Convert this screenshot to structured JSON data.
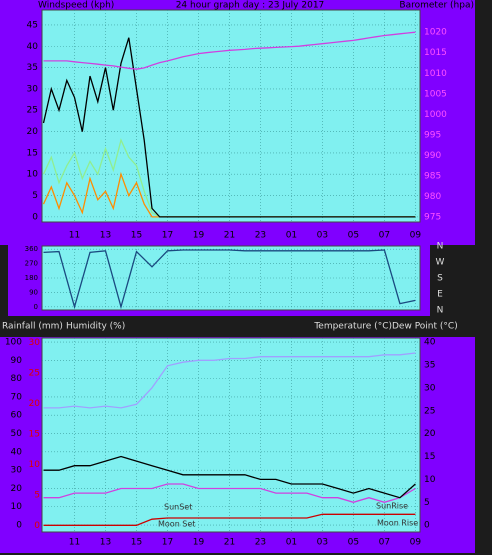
{
  "chart_data": [
    {
      "type": "line",
      "title": "24 hour graph day : 23 July 2017",
      "y_label": "Windspeed (kph)",
      "y2_label": "Barometer (hpa)",
      "x": [
        9,
        9.5,
        10,
        10.5,
        11,
        11.5,
        12,
        12.5,
        13,
        13.5,
        14,
        14.5,
        15,
        15.5,
        16,
        16.5,
        17,
        17.5,
        18,
        18.5,
        19,
        19.5,
        20,
        20.5,
        21,
        21.5,
        22,
        22.5,
        23,
        23.5,
        24,
        24.5,
        25,
        25.5,
        26,
        26.5,
        27,
        27.5,
        28,
        28.5,
        29,
        29.5,
        30,
        30.5,
        31,
        31.5,
        32,
        32.5,
        33
      ],
      "xlim": [
        8.9,
        33.3
      ],
      "xticks": [
        11,
        13,
        15,
        17,
        19,
        21,
        23,
        {
          "value": 25,
          "label": "01"
        },
        {
          "value": 27,
          "label": "03"
        },
        {
          "value": 29,
          "label": "05"
        },
        {
          "value": 31,
          "label": "07"
        },
        {
          "value": 33,
          "label": "09"
        }
      ],
      "ylim": [
        -1.2,
        48.5
      ],
      "yticks": [
        0,
        5,
        10,
        15,
        20,
        25,
        30,
        35,
        40,
        45
      ],
      "y2lim": [
        973.8,
        1025.4
      ],
      "y2ticks": [
        975,
        980,
        985,
        990,
        995,
        1000,
        1005,
        1010,
        1015,
        1020
      ],
      "grid": true,
      "series": [
        {
          "color": "#ff8c00",
          "values": [
            3,
            7,
            2,
            8,
            5,
            1,
            9,
            4,
            6,
            2,
            10,
            5,
            8,
            3,
            0,
            0,
            0,
            0,
            0,
            0,
            0,
            0,
            0,
            0,
            0,
            0,
            0,
            0,
            0,
            0,
            0,
            0,
            0,
            0,
            0,
            0,
            0,
            0,
            0,
            0,
            0,
            0,
            0,
            0,
            0,
            0,
            0,
            0,
            0
          ]
        },
        {
          "color": "#90ee90",
          "values": [
            10,
            14,
            8,
            12,
            15,
            9,
            13,
            10,
            16,
            11,
            18,
            14,
            12,
            6,
            1,
            0,
            0,
            0,
            0,
            0,
            0,
            0,
            0,
            0,
            0,
            0,
            0,
            0,
            0,
            0,
            0,
            0,
            0,
            0,
            0,
            0,
            0,
            0,
            0,
            0,
            0,
            0,
            0,
            0,
            0,
            0,
            0,
            0,
            0
          ]
        },
        {
          "color": "#000000",
          "values": [
            22,
            30,
            25,
            32,
            28,
            20,
            33,
            27,
            35,
            25,
            36,
            42,
            30,
            18,
            2,
            0,
            0,
            0,
            0,
            0,
            0,
            0,
            0,
            0,
            0,
            0,
            0,
            0,
            0,
            0,
            0,
            0,
            0,
            0,
            0,
            0,
            0,
            0,
            0,
            0,
            0,
            0,
            0,
            0,
            0,
            0,
            0,
            0,
            0
          ]
        },
        {
          "color": "#d040e0",
          "axis": "y2",
          "values": [
            1013,
            1013,
            1013,
            1013,
            1012.8,
            1012.6,
            1012.4,
            1012.2,
            1012,
            1011.8,
            1011.5,
            1011.2,
            1011,
            1011.3,
            1012,
            1012.6,
            1013,
            1013.5,
            1014,
            1014.4,
            1014.8,
            1015,
            1015.2,
            1015.4,
            1015.6,
            1015.7,
            1015.8,
            1016,
            1016.1,
            1016.2,
            1016.3,
            1016.4,
            1016.5,
            1016.6,
            1016.8,
            1017,
            1017.2,
            1017.4,
            1017.6,
            1017.8,
            1018,
            1018.3,
            1018.6,
            1018.9,
            1019.2,
            1019.4,
            1019.6,
            1019.8,
            1020
          ]
        }
      ]
    },
    {
      "type": "line",
      "direction_labels": [
        "N",
        "W",
        "S",
        "E",
        "N"
      ],
      "x": [
        9,
        10,
        11,
        12,
        13,
        14,
        15,
        16,
        17,
        18,
        19,
        20,
        21,
        22,
        23,
        24,
        25,
        26,
        27,
        28,
        29,
        30,
        31,
        32,
        33
      ],
      "xlim": [
        8.9,
        33.3
      ],
      "ylim": [
        -20,
        380
      ],
      "yticks": [
        0,
        90,
        180,
        270,
        360
      ],
      "grid": true,
      "series": [
        {
          "color": "#1a4a80",
          "values": [
            340,
            345,
            0,
            340,
            350,
            0,
            345,
            250,
            350,
            355,
            355,
            355,
            355,
            350,
            350,
            350,
            350,
            350,
            350,
            350,
            350,
            350,
            355,
            20,
            40
          ]
        }
      ]
    },
    {
      "type": "line",
      "y_label": "Rainfall (mm)",
      "y_label_2": "Humidity (%)",
      "y2_label": "Temperature (°C)",
      "y2_label_2": "Dew Point (°C)",
      "annotations": [
        "SunSet",
        "Moon Set",
        "SunRise",
        "Moon Rise"
      ],
      "x": [
        9,
        10,
        11,
        12,
        13,
        14,
        15,
        16,
        17,
        18,
        19,
        20,
        21,
        22,
        23,
        24,
        25,
        26,
        27,
        28,
        29,
        30,
        31,
        32,
        33
      ],
      "xlim": [
        8.9,
        33.3
      ],
      "xticks": [
        11,
        13,
        15,
        17,
        19,
        21,
        23,
        {
          "value": 25,
          "label": "01"
        },
        {
          "value": 27,
          "label": "03"
        },
        {
          "value": 29,
          "label": "05"
        },
        {
          "value": 31,
          "label": "07"
        },
        {
          "value": 33,
          "label": "09"
        }
      ],
      "ylim": [
        -3.8,
        102.2
      ],
      "yticks": [
        0,
        10,
        20,
        30,
        40,
        50,
        60,
        70,
        80,
        90,
        100
      ],
      "y2lim": [
        -1.5,
        40.9
      ],
      "y2ticks": [
        0,
        5,
        10,
        15,
        20,
        25,
        30,
        35,
        40
      ],
      "y3lim": [
        -1.1,
        30.7
      ],
      "y3ticks": [
        0,
        5,
        10,
        15,
        20,
        25,
        30
      ],
      "grid": true,
      "series": [
        {
          "color": "#a0a0ff",
          "values": [
            64,
            64,
            65,
            64,
            65,
            64,
            66,
            75,
            87,
            89,
            90,
            90,
            91,
            91,
            92,
            92,
            92,
            92,
            92,
            92,
            92,
            92,
            93,
            93,
            94
          ]
        },
        {
          "color": "#cc0000",
          "axis": "y3",
          "values": [
            0,
            0,
            0,
            0,
            0,
            0,
            0,
            1,
            1.2,
            1.2,
            1.2,
            1.2,
            1.2,
            1.2,
            1.2,
            1.2,
            1.2,
            1.2,
            1.8,
            1.8,
            1.8,
            1.8,
            1.8,
            1.8,
            1.8
          ]
        },
        {
          "color": "#d040e0",
          "axis": "y2",
          "values": [
            6,
            6,
            7,
            7,
            7,
            8,
            8,
            8,
            9,
            9,
            8,
            8,
            8,
            8,
            8,
            7,
            7,
            7,
            6,
            6,
            5,
            6,
            5,
            6,
            8
          ]
        },
        {
          "color": "#000000",
          "axis": "y2",
          "values": [
            12,
            12,
            13,
            13,
            14,
            15,
            14,
            13,
            12,
            11,
            11,
            11,
            11,
            11,
            10,
            10,
            9,
            9,
            9,
            8,
            7,
            8,
            7,
            6,
            9
          ]
        }
      ]
    }
  ]
}
